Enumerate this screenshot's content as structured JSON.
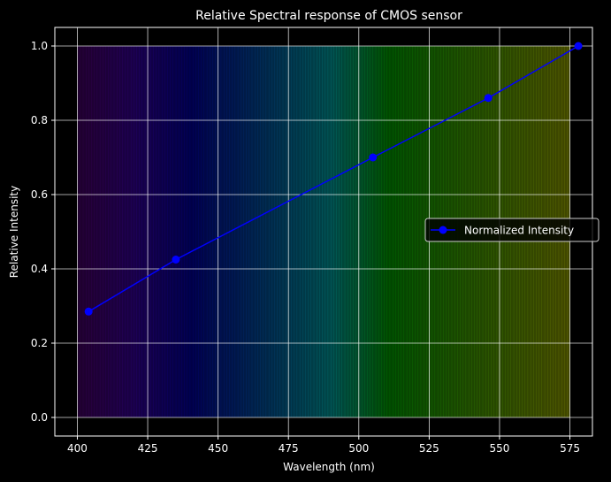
{
  "chart_data": {
    "type": "line",
    "title": "Relative Spectral response of CMOS sensor",
    "xlabel": "Wavelength (nm)",
    "ylabel": "Relative Intensity",
    "xlim": [
      392,
      583
    ],
    "ylim": [
      -0.05,
      1.05
    ],
    "xticks": [
      400,
      425,
      450,
      475,
      500,
      525,
      550,
      575
    ],
    "yticks": [
      0.0,
      0.2,
      0.4,
      0.6,
      0.8,
      1.0
    ],
    "xtick_labels": [
      "400",
      "425",
      "450",
      "475",
      "500",
      "525",
      "550",
      "575"
    ],
    "ytick_labels": [
      "0.0",
      "0.2",
      "0.4",
      "0.6",
      "0.8",
      "1.0"
    ],
    "grid": true,
    "legend_position": "center-right",
    "background_spectrum": {
      "from": 400,
      "to": 575,
      "ymin": 0.0,
      "ymax": 1.0
    },
    "series": [
      {
        "name": "Normalized Intensity",
        "color": "#0000ff",
        "marker": "circle",
        "x": [
          404,
          435,
          505,
          546,
          578
        ],
        "y": [
          0.285,
          0.425,
          0.7,
          0.86,
          1.0
        ]
      }
    ]
  }
}
